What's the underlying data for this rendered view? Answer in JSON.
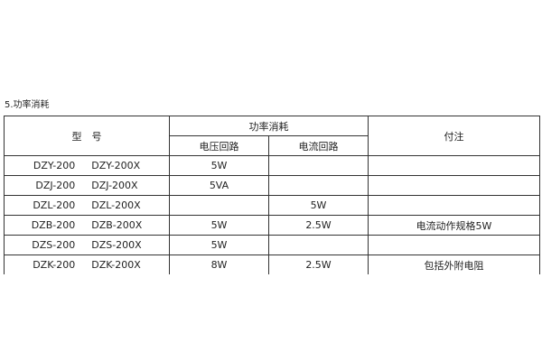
{
  "section_title": "5.功率消耗",
  "headers": {
    "model": "型　号",
    "power": "功率消耗",
    "voltage_circuit": "电压回路",
    "current_circuit": "电流回路",
    "notes": "付注"
  },
  "rows": [
    {
      "model_a": "DZY-200",
      "model_b": "DZY-200X",
      "voltage": "5W",
      "current": "",
      "note": ""
    },
    {
      "model_a": "DZJ-200",
      "model_b": "DZJ-200X",
      "voltage": "5VA",
      "current": "",
      "note": ""
    },
    {
      "model_a": "DZL-200",
      "model_b": "DZL-200X",
      "voltage": "",
      "current": "5W",
      "note": ""
    },
    {
      "model_a": "DZB-200",
      "model_b": "DZB-200X",
      "voltage": "5W",
      "current": "2.5W",
      "note": "电流动作规格5W"
    },
    {
      "model_a": "DZS-200",
      "model_b": "DZS-200X",
      "voltage": "5W",
      "current": "",
      "note": ""
    },
    {
      "model_a": "DZK-200",
      "model_b": "DZK-200X",
      "voltage": "8W",
      "current": "2.5W",
      "note": "包括外附电阻"
    }
  ]
}
